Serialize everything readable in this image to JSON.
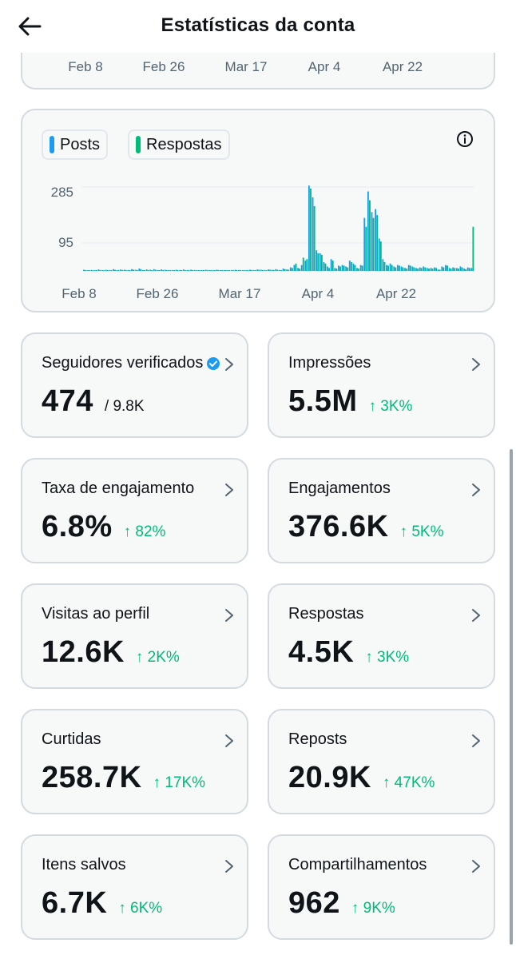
{
  "header": {
    "title": "Estatísticas da conta"
  },
  "top_chart": {
    "x_labels": [
      "Feb 8",
      "Feb 26",
      "Mar 17",
      "Apr 4",
      "Apr 22"
    ]
  },
  "chart_data": {
    "type": "bar",
    "legend": [
      {
        "name": "Posts",
        "color": "#1d9bf0"
      },
      {
        "name": "Respostas",
        "color": "#00ba7c"
      }
    ],
    "x_labels": [
      "Feb 8",
      "Feb 26",
      "Mar 17",
      "Apr 4",
      "Apr 22"
    ],
    "y_ticks": [
      285,
      95
    ],
    "series": [
      {
        "name": "Posts",
        "values": [
          4,
          2,
          3,
          1,
          5,
          2,
          4,
          3,
          6,
          2,
          5,
          4,
          3,
          6,
          4,
          8,
          3,
          5,
          4,
          6,
          3,
          5,
          4,
          3,
          2,
          4,
          3,
          5,
          2,
          4,
          3,
          2,
          3,
          4,
          2,
          3,
          4,
          2,
          3,
          3,
          2,
          4,
          3,
          2,
          3,
          4,
          3,
          5,
          4,
          3,
          5,
          4,
          6,
          3,
          8,
          5,
          12,
          20,
          10,
          20,
          35,
          290,
          250,
          70,
          60,
          30,
          15,
          40,
          10,
          18,
          20,
          15,
          35,
          25,
          10,
          20,
          180,
          270,
          200,
          210,
          110,
          40,
          20,
          25,
          15,
          20,
          15,
          10,
          20,
          15,
          10,
          12,
          15,
          10,
          10,
          12,
          5,
          15,
          20,
          10,
          12,
          10,
          15,
          8,
          12,
          10
        ]
      },
      {
        "name": "Respostas",
        "values": [
          2,
          1,
          2,
          1,
          3,
          1,
          2,
          2,
          4,
          1,
          3,
          3,
          2,
          4,
          3,
          6,
          2,
          3,
          2,
          4,
          2,
          3,
          3,
          2,
          1,
          3,
          2,
          3,
          1,
          3,
          2,
          1,
          2,
          3,
          1,
          2,
          3,
          1,
          2,
          2,
          1,
          3,
          2,
          1,
          2,
          3,
          2,
          4,
          3,
          2,
          4,
          3,
          4,
          2,
          6,
          4,
          10,
          25,
          8,
          45,
          40,
          280,
          220,
          60,
          55,
          25,
          10,
          35,
          8,
          15,
          18,
          12,
          30,
          20,
          8,
          18,
          150,
          240,
          180,
          190,
          100,
          30,
          18,
          20,
          12,
          18,
          12,
          8,
          18,
          12,
          8,
          10,
          12,
          8,
          8,
          10,
          4,
          12,
          18,
          8,
          10,
          8,
          12,
          6,
          10,
          150
        ]
      }
    ]
  },
  "stats": [
    {
      "label": "Seguidores verificados",
      "value": "474",
      "sub": "/ 9.8K",
      "verified": true
    },
    {
      "label": "Impressões",
      "value": "5.5M",
      "change": "↑ 3K%"
    },
    {
      "label": "Taxa de engajamento",
      "value": "6.8%",
      "change": "↑ 82%"
    },
    {
      "label": "Engajamentos",
      "value": "376.6K",
      "change": "↑ 5K%"
    },
    {
      "label": "Visitas ao perfil",
      "value": "12.6K",
      "change": "↑ 2K%"
    },
    {
      "label": "Respostas",
      "value": "4.5K",
      "change": "↑ 3K%"
    },
    {
      "label": "Curtidas",
      "value": "258.7K",
      "change": "↑ 17K%"
    },
    {
      "label": "Reposts",
      "value": "20.9K",
      "change": "↑ 47K%"
    },
    {
      "label": "Itens salvos",
      "value": "6.7K",
      "change": "↑ 6K%"
    },
    {
      "label": "Compartilhamentos",
      "value": "962",
      "change": "↑ 9K%"
    }
  ]
}
